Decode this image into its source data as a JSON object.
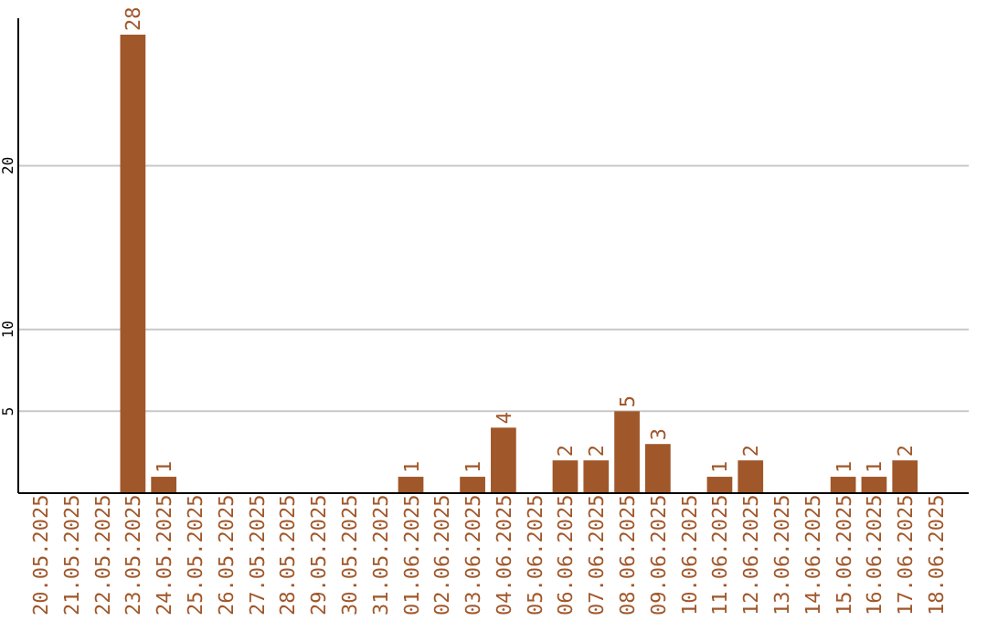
{
  "chart_data": {
    "type": "bar",
    "categories": [
      "20.05.2025",
      "21.05.2025",
      "22.05.2025",
      "23.05.2025",
      "24.05.2025",
      "25.05.2025",
      "26.05.2025",
      "27.05.2025",
      "28.05.2025",
      "29.05.2025",
      "30.05.2025",
      "31.05.2025",
      "01.06.2025",
      "02.06.2025",
      "03.06.2025",
      "04.06.2025",
      "05.06.2025",
      "06.06.2025",
      "07.06.2025",
      "08.06.2025",
      "09.06.2025",
      "10.06.2025",
      "11.06.2025",
      "12.06.2025",
      "13.06.2025",
      "14.06.2025",
      "15.06.2025",
      "16.06.2025",
      "17.06.2025",
      "18.06.2025"
    ],
    "values": [
      0,
      0,
      0,
      28,
      1,
      0,
      0,
      0,
      0,
      0,
      0,
      0,
      1,
      0,
      1,
      4,
      0,
      2,
      2,
      5,
      3,
      0,
      1,
      2,
      0,
      0,
      1,
      1,
      2,
      0
    ],
    "value_labels": [
      null,
      null,
      null,
      "28",
      "1",
      null,
      null,
      null,
      null,
      null,
      null,
      null,
      "1",
      null,
      "1",
      "4",
      null,
      "2",
      "2",
      "5",
      "3",
      null,
      "1",
      "2",
      null,
      null,
      "1",
      "1",
      "2",
      null
    ],
    "color": "#a0572a",
    "ylim": [
      0,
      29
    ],
    "yticks": [
      5,
      10,
      20
    ],
    "grid": "y"
  }
}
